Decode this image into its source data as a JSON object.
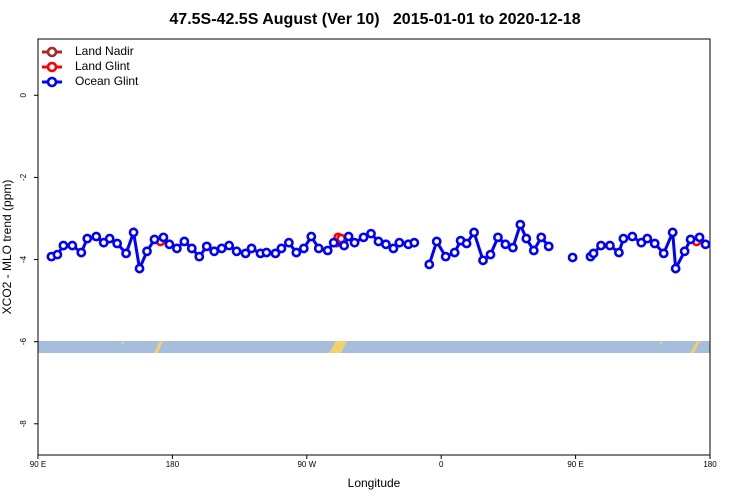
{
  "chart_data": {
    "type": "line",
    "title": "47.5S-42.5S August (Ver 10)   2015-01-01 to 2020-12-18",
    "x_label": "Longitude",
    "y_label": "XCO2 - MLO trend (ppm)",
    "xlim": [
      90,
      540
    ],
    "ylim": [
      -8.76,
      1.37
    ],
    "xticks": [
      {
        "value": 90,
        "label": "90 E"
      },
      {
        "value": 180,
        "label": "180"
      },
      {
        "value": 270,
        "label": "90 W"
      },
      {
        "value": 360,
        "label": "0"
      },
      {
        "value": 450,
        "label": "90 E"
      },
      {
        "value": 540,
        "label": "180"
      }
    ],
    "yticks": [
      0,
      -2,
      -4,
      -6,
      -8
    ],
    "legend": "top-left",
    "series": [
      {
        "name": "Land Nadir",
        "color": "#a52a2a",
        "x": [],
        "values": []
      },
      {
        "name": "Land Glint",
        "color": "#ff0000",
        "x": [
          172,
          177,
          290,
          291,
          293,
          297,
          531
        ],
        "values": [
          -3.56,
          null,
          -3.59,
          -3.46,
          -3.49,
          null,
          -3.56
        ]
      },
      {
        "name": "Ocean Glint",
        "color": "#0000ff",
        "x": [
          99,
          103,
          107,
          113,
          119,
          123,
          129,
          134,
          138,
          143,
          149,
          154,
          158,
          163,
          168,
          174,
          178,
          183,
          188,
          193,
          198,
          203,
          208,
          213,
          218,
          223,
          229,
          233,
          239,
          243,
          249,
          253,
          258,
          263,
          268,
          273,
          278,
          284,
          288,
          295,
          298,
          302,
          308,
          313,
          318,
          323,
          328,
          332,
          338,
          342,
          347,
          352,
          357,
          363,
          369,
          373,
          377,
          382,
          388,
          393,
          398,
          403,
          408,
          413,
          417,
          422,
          427,
          432,
          437,
          448,
          455,
          460,
          462,
          467,
          473,
          479,
          482,
          488,
          494,
          498,
          503,
          509,
          515,
          517,
          523,
          527,
          533,
          537
        ],
        "values": [
          -3.93,
          -3.88,
          -3.66,
          -3.66,
          -3.83,
          -3.49,
          -3.44,
          -3.59,
          -3.49,
          -3.61,
          -3.85,
          -3.34,
          -4.22,
          -3.8,
          -3.51,
          -3.46,
          -3.63,
          -3.73,
          -3.56,
          -3.73,
          -3.93,
          -3.68,
          -3.8,
          -3.73,
          -3.66,
          -3.8,
          -3.85,
          -3.73,
          -3.85,
          -3.83,
          -3.85,
          -3.73,
          -3.59,
          -3.83,
          -3.73,
          -3.44,
          -3.73,
          -3.78,
          -3.59,
          -3.66,
          -3.44,
          -3.59,
          -3.46,
          -3.37,
          -3.56,
          -3.63,
          -3.73,
          -3.59,
          -3.63,
          -3.59,
          null,
          -4.12,
          -3.56,
          -3.93,
          -3.83,
          -3.54,
          -3.61,
          -3.34,
          -4.02,
          -3.88,
          -3.46,
          -3.63,
          -3.71,
          -3.15,
          -3.49,
          -3.78,
          -3.46,
          -3.68,
          null,
          -3.95,
          null,
          -3.93,
          -3.85,
          -3.66,
          -3.66,
          -3.83,
          -3.49,
          -3.44,
          -3.59,
          -3.49,
          -3.61,
          -3.85,
          -3.34,
          -4.22,
          -3.8,
          -3.51,
          -3.46,
          -3.63
        ]
      }
    ]
  }
}
